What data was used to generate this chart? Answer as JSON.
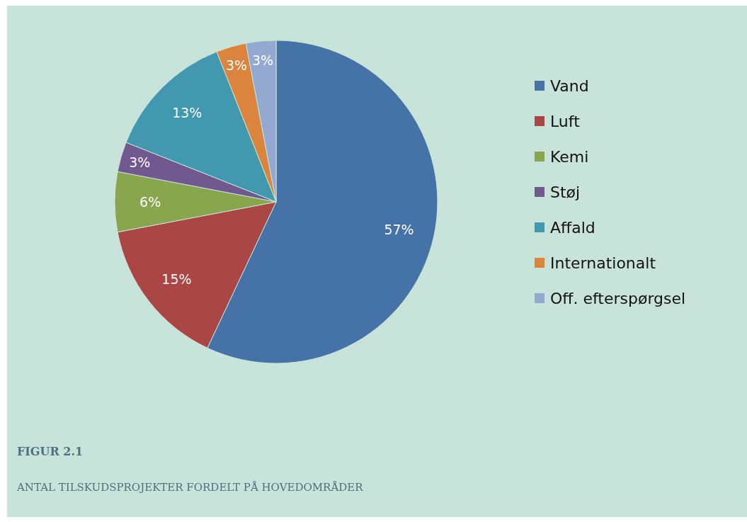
{
  "chart_data": {
    "type": "pie",
    "title": "FIGUR 2.1",
    "subtitle": "ANTAL TILSKUDSPROJEKTER FORDELT PÅ HOVEDOMRÅDER",
    "categories": [
      "Vand",
      "Luft",
      "Kemi",
      "Støj",
      "Affald",
      "Internationalt",
      "Off. efterspørgsel"
    ],
    "values": [
      57,
      15,
      6,
      3,
      13,
      3,
      3
    ],
    "colors": [
      "#4572a7",
      "#aa4643",
      "#89a54e",
      "#71588f",
      "#4198af",
      "#db843d",
      "#93a9cf"
    ],
    "value_labels": [
      "57%",
      "15%",
      "6%",
      "3%",
      "13%",
      "3%",
      "3%"
    ],
    "legend": "right"
  }
}
